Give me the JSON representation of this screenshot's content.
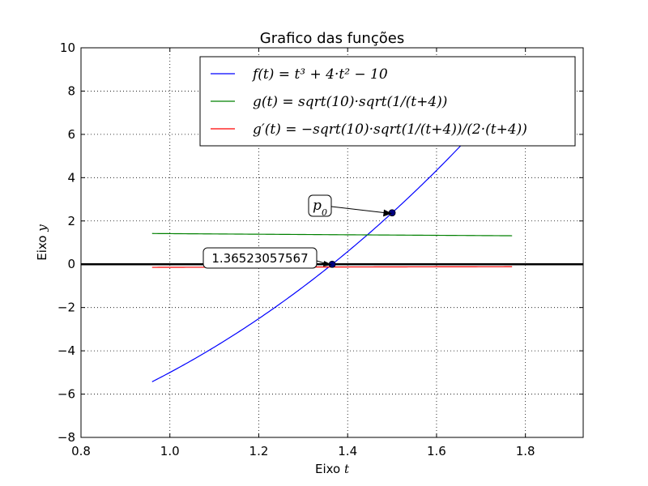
{
  "chart_data": {
    "type": "line",
    "title": "Grafico das funções",
    "xlabel": {
      "prefix": "Eixo ",
      "var": "t"
    },
    "ylabel": {
      "prefix": "Eixo ",
      "var": "y"
    },
    "xlim": [
      0.8,
      1.93
    ],
    "ylim": [
      -8,
      10
    ],
    "xticks": [
      0.8,
      1.0,
      1.2,
      1.4,
      1.6,
      1.8
    ],
    "xtick_labels": [
      "0.8",
      "1.0",
      "1.2",
      "1.4",
      "1.6",
      "1.8"
    ],
    "yticks": [
      -8,
      -6,
      -4,
      -2,
      0,
      2,
      4,
      6,
      8,
      10
    ],
    "ytick_labels": [
      "−8",
      "−6",
      "−4",
      "−2",
      "0",
      "2",
      "4",
      "6",
      "8",
      "10"
    ],
    "grid": true,
    "legend_position": "top-right",
    "series": [
      {
        "name": "f(t) = t³ + 4·t² − 10",
        "color": "#0000ff",
        "fn": "cubic",
        "x_range": [
          0.96,
          1.77
        ]
      },
      {
        "name": "g(t) = sqrt(10)·sqrt(1/(t+4))",
        "color": "#008000",
        "fn": "g",
        "x_range": [
          0.96,
          1.77
        ]
      },
      {
        "name": "g′(t) = −sqrt(10)·sqrt(1/(t+4))/(2·(t+4))",
        "color": "#ff0000",
        "fn": "gprime",
        "x_range": [
          0.96,
          1.77
        ]
      }
    ],
    "horizontal_line": {
      "y": 0,
      "color": "#000000"
    },
    "points": [
      {
        "x": 1.5,
        "y": 2.375,
        "label": "p0"
      },
      {
        "x": 1.36523057567,
        "y": 0,
        "label": "1.36523057567"
      }
    ]
  }
}
